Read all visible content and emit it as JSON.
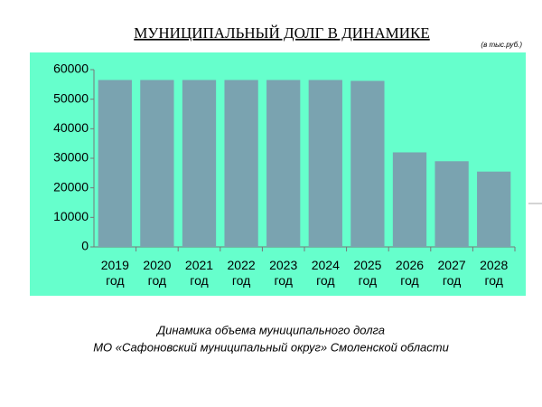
{
  "chart_data": {
    "type": "bar",
    "title": "МУНИЦИПАЛЬНЫЙ ДОЛГ В ДИНАМИКЕ",
    "unit_note": "(в тыс.руб.)",
    "categories": [
      "2019 год",
      "2020 год",
      "2021 год",
      "2022 год",
      "2023 год",
      "2024 год",
      "2025 год",
      "2026 год",
      "2027 год",
      "2028 год"
    ],
    "values": [
      56500,
      56500,
      56500,
      56500,
      56500,
      56500,
      56200,
      32000,
      29000,
      25500
    ],
    "color": "#7aa3b0",
    "ylim": [
      0,
      60000
    ],
    "yticks": [
      0,
      10000,
      20000,
      30000,
      40000,
      50000,
      60000
    ],
    "caption": [
      "Динамика объема муниципального долга",
      "МО «Сафоновский муниципальный округ» Смоленской области"
    ]
  }
}
